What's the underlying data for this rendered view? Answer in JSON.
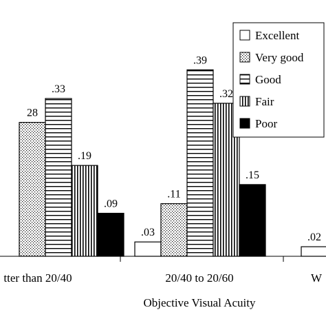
{
  "chart_data": {
    "type": "bar",
    "xlabel": "Objective Visual Acuity",
    "ylabel": "",
    "ylim": [
      0,
      0.4
    ],
    "grid": false,
    "legend_placement": "top-right",
    "categories": [
      "tter than 20/40",
      "20/40 to 20/60",
      "W"
    ],
    "series": [
      {
        "name": "Excellent",
        "pattern": "white",
        "values": [
          null,
          0.03,
          0.02
        ],
        "labels": [
          "",
          ".03",
          ".02"
        ]
      },
      {
        "name": "Very good",
        "pattern": "dots",
        "values": [
          0.28,
          0.11,
          null
        ],
        "labels": [
          "28",
          ".11",
          ""
        ]
      },
      {
        "name": "Good",
        "pattern": "hlines",
        "values": [
          0.33,
          0.39,
          null
        ],
        "labels": [
          ".33",
          ".39",
          ""
        ]
      },
      {
        "name": "Fair",
        "pattern": "vlines",
        "values": [
          0.19,
          0.32,
          null
        ],
        "labels": [
          ".19",
          ".32",
          ""
        ]
      },
      {
        "name": "Poor",
        "pattern": "black",
        "values": [
          0.09,
          0.15,
          null
        ],
        "labels": [
          ".09",
          ".15",
          ""
        ]
      }
    ]
  }
}
